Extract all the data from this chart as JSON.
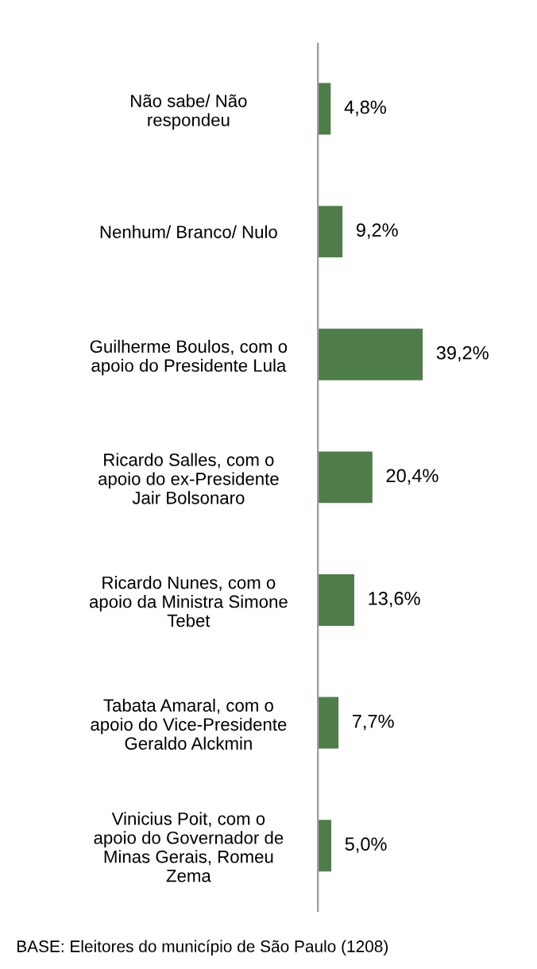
{
  "chart_data": {
    "type": "bar",
    "orientation": "horizontal",
    "categories": [
      "Não sabe/ Não\nrespondeu",
      "Nenhum/ Branco/ Nulo",
      "Guilherme Boulos, com o\napoio do Presidente Lula",
      "Ricardo Salles, com o\napoio do ex-Presidente\nJair Bolsonaro",
      "Ricardo Nunes, com o\napoio da Ministra Simone\nTebet",
      "Tabata Amaral, com o\napoio do Vice-Presidente\nGeraldo Alckmin",
      "Vinicius Poit, com o\napoio do Governador de\nMinas Gerais, Romeu\nZema"
    ],
    "values": [
      4.8,
      9.2,
      39.2,
      20.4,
      13.6,
      7.7,
      5.0
    ],
    "value_labels": [
      "4,8%",
      "9,2%",
      "39,2%",
      "20,4%",
      "13,6%",
      "7,7%",
      "5,0%"
    ],
    "color": "#4f7d49",
    "annotations": [
      "BASE: Eleitores do município de São Paulo (1208)"
    ],
    "grid": false,
    "legend": false
  }
}
